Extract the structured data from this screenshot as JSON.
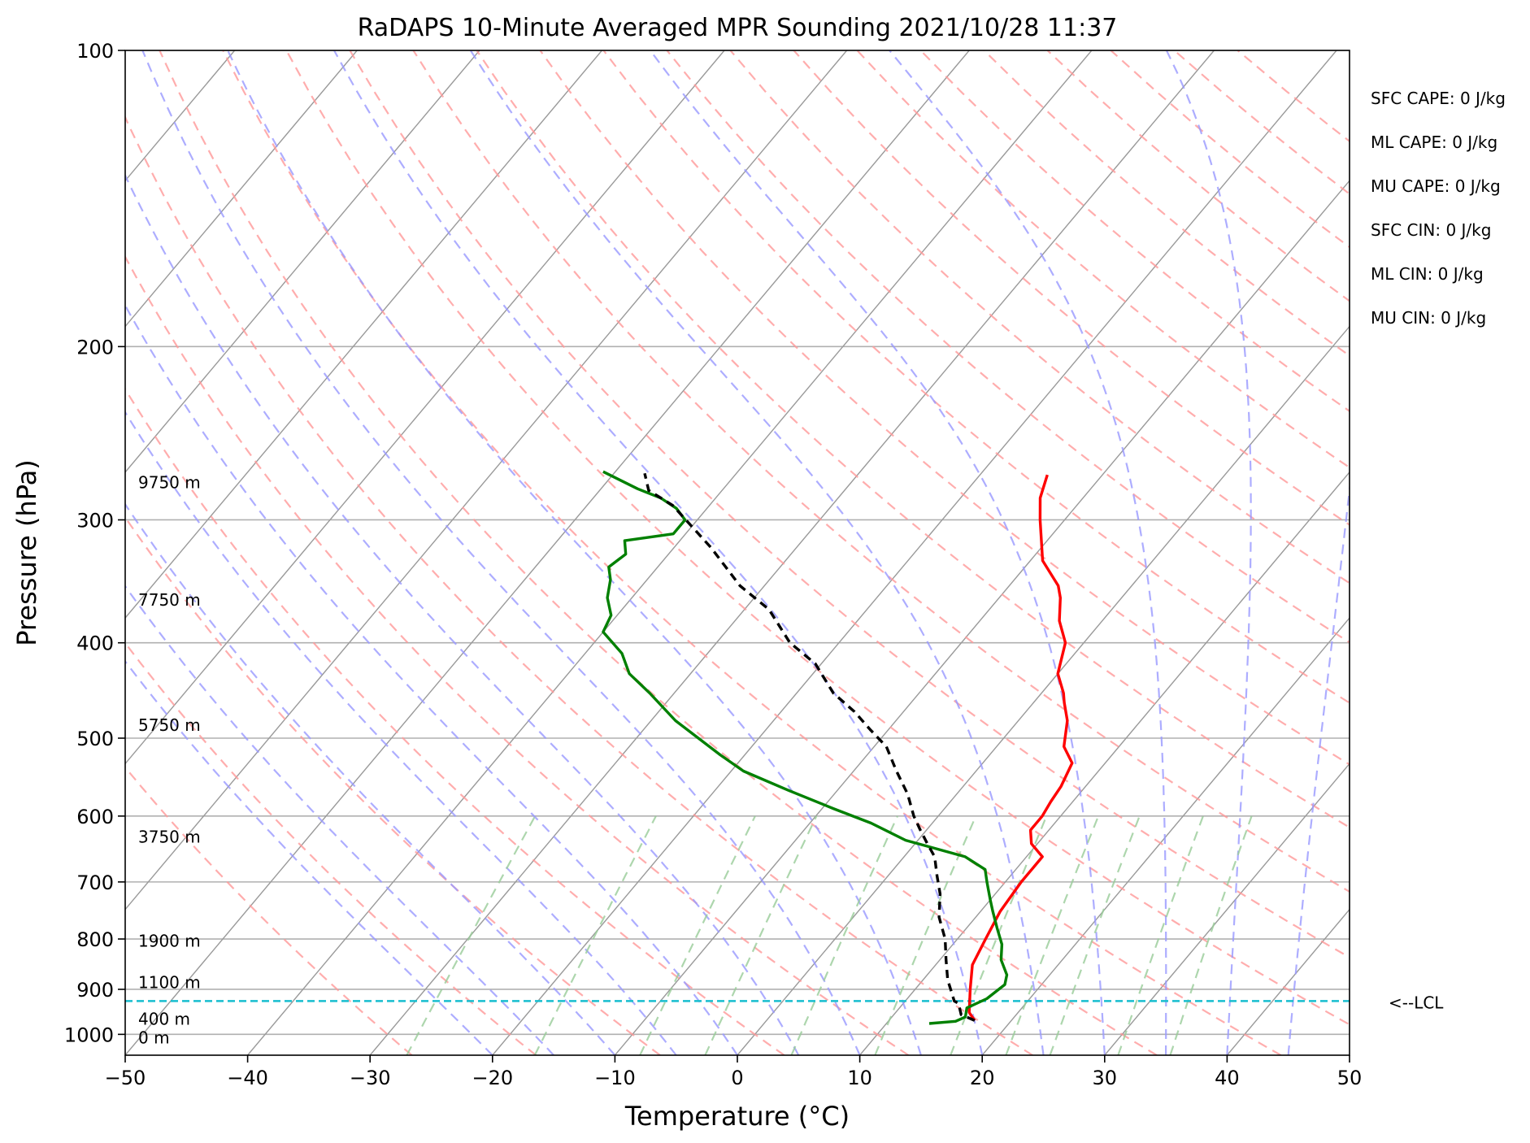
{
  "chart_data": {
    "type": "skew-t",
    "title": "RaDAPS 10-Minute Averaged MPR Sounding 2021/10/28 11:37",
    "xlabel": "Temperature (°C)",
    "ylabel": "Pressure (hPa)",
    "xlim": [
      -50,
      50
    ],
    "ylim": [
      1050,
      100
    ],
    "y_scale": "log",
    "x_ticks": [
      "−50",
      "−40",
      "−30",
      "−20",
      "−10",
      "0",
      "10",
      "20",
      "30",
      "40",
      "50"
    ],
    "y_ticks": [
      "100",
      "200",
      "300",
      "400",
      "500",
      "600",
      "700",
      "800",
      "900",
      "1000"
    ],
    "grid": true,
    "colors": {
      "temperature": "#ff0000",
      "dewpoint": "#008000",
      "parcel": "#000000",
      "lcl": "#17becf",
      "dry_adiabats": "#ff9999",
      "moist_adiabats": "#9999ff",
      "mixing_ratio": "#99cc99",
      "isotherms": "#999999"
    },
    "height_labels": [
      {
        "text": "9750 m",
        "pressure": 275
      },
      {
        "text": "7750 m",
        "pressure": 362
      },
      {
        "text": "5750 m",
        "pressure": 485
      },
      {
        "text": "3750 m",
        "pressure": 630
      },
      {
        "text": "1900 m",
        "pressure": 804
      },
      {
        "text": "1100 m",
        "pressure": 886
      },
      {
        "text": "400 m",
        "pressure": 965
      },
      {
        "text": "0 m",
        "pressure": 1008
      }
    ],
    "indices": [
      "SFC CAPE: 0 J/kg",
      "ML CAPE: 0 J/kg",
      "MU CAPE: 0 J/kg",
      "SFC CIN: 0 J/kg",
      "ML CIN: 0 J/kg",
      "MU CIN: 0 J/kg"
    ],
    "lcl": {
      "label": "<--LCL",
      "pressure": 925
    },
    "series": [
      {
        "key": "temperature",
        "points": [
          [
            17.0,
            968
          ],
          [
            16.0,
            950
          ],
          [
            14.5,
            900
          ],
          [
            13.0,
            850
          ],
          [
            12.3,
            800
          ],
          [
            11.6,
            750
          ],
          [
            11.3,
            700
          ],
          [
            11.3,
            660
          ],
          [
            9.5,
            640
          ],
          [
            8.5,
            620
          ],
          [
            8.5,
            600
          ],
          [
            8.2,
            580
          ],
          [
            8.0,
            560
          ],
          [
            7.3,
            530
          ],
          [
            5.5,
            510
          ],
          [
            4.0,
            480
          ],
          [
            2.5,
            460
          ],
          [
            1.8,
            450
          ],
          [
            0.0,
            430
          ],
          [
            -1.5,
            400
          ],
          [
            -3.5,
            380
          ],
          [
            -5.0,
            360
          ],
          [
            -6.0,
            350
          ],
          [
            -9.0,
            330
          ],
          [
            -12.0,
            300
          ],
          [
            -13.5,
            285
          ],
          [
            -14.5,
            270
          ]
        ]
      },
      {
        "key": "dewpoint",
        "points": [
          [
            13.5,
            975
          ],
          [
            15.5,
            970
          ],
          [
            16.0,
            960
          ],
          [
            15.5,
            940
          ],
          [
            16.5,
            920
          ],
          [
            17.0,
            890
          ],
          [
            16.5,
            870
          ],
          [
            15.0,
            840
          ],
          [
            14.0,
            810
          ],
          [
            12.5,
            780
          ],
          [
            11.0,
            750
          ],
          [
            10.0,
            730
          ],
          [
            8.5,
            700
          ],
          [
            7.5,
            680
          ],
          [
            5.0,
            660
          ],
          [
            -1.0,
            635
          ],
          [
            -5.0,
            610
          ],
          [
            -9.0,
            590
          ],
          [
            -14.0,
            565
          ],
          [
            -19.0,
            540
          ],
          [
            -22.0,
            520
          ],
          [
            -28.0,
            480
          ],
          [
            -32.0,
            450
          ],
          [
            -35.0,
            430
          ],
          [
            -37.0,
            410
          ],
          [
            -40.0,
            390
          ],
          [
            -40.5,
            375
          ],
          [
            -42.0,
            360
          ],
          [
            -43.0,
            345
          ],
          [
            -44.0,
            335
          ],
          [
            -43.5,
            325
          ],
          [
            -44.5,
            315
          ],
          [
            -41.0,
            310
          ],
          [
            -41.0,
            300
          ],
          [
            -42.5,
            292
          ],
          [
            -44.5,
            285
          ],
          [
            -47.0,
            279
          ],
          [
            -51.0,
            268
          ]
        ]
      },
      {
        "key": "parcel",
        "points": [
          [
            17.0,
            968
          ],
          [
            15.5,
            955
          ],
          [
            14.5,
            930
          ],
          [
            14.0,
            925
          ],
          [
            12.0,
            880
          ],
          [
            10.5,
            840
          ],
          [
            9.0,
            800
          ],
          [
            7.0,
            760
          ],
          [
            5.5,
            720
          ],
          [
            4.0,
            690
          ],
          [
            2.5,
            660
          ],
          [
            1.0,
            640
          ],
          [
            -0.5,
            620
          ],
          [
            -2.0,
            600
          ],
          [
            -4.0,
            570
          ],
          [
            -6.5,
            540
          ],
          [
            -9.0,
            510
          ],
          [
            -11.5,
            490
          ],
          [
            -14.0,
            470
          ],
          [
            -17.0,
            450
          ],
          [
            -20.5,
            420
          ],
          [
            -24.0,
            400
          ],
          [
            -28.0,
            370
          ],
          [
            -32.0,
            350
          ],
          [
            -37.0,
            320
          ],
          [
            -43.0,
            290
          ],
          [
            -46.0,
            280
          ],
          [
            -47.5,
            269
          ]
        ]
      }
    ]
  }
}
